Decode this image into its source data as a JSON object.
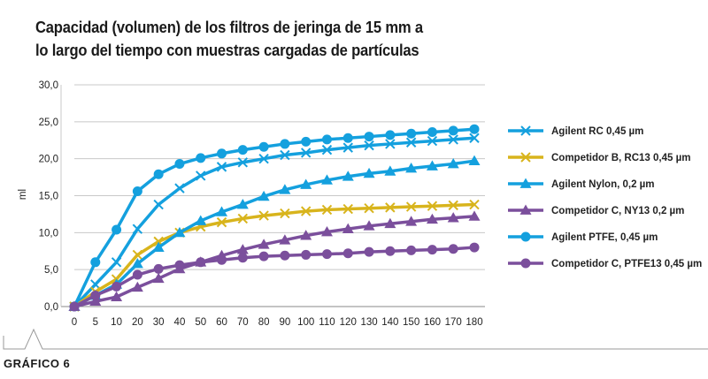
{
  "chart_data": {
    "type": "line",
    "title_lines": [
      "Capacidad (volumen) de los filtros de jeringa de 15 mm a",
      "lo largo del tiempo con muestras cargadas de partículas"
    ],
    "ylabel": "ml",
    "xlabel": "",
    "x": [
      0,
      5,
      10,
      20,
      30,
      40,
      50,
      60,
      70,
      80,
      90,
      100,
      110,
      120,
      130,
      140,
      150,
      160,
      170,
      180
    ],
    "x_tick_labels": [
      "0",
      "5",
      "10",
      "20",
      "30",
      "40",
      "50",
      "60",
      "70",
      "80",
      "90",
      "100",
      "110",
      "120",
      "130",
      "140",
      "150",
      "160",
      "170",
      "180"
    ],
    "ylim": [
      0,
      30
    ],
    "y_ticks": [
      0,
      5,
      10,
      15,
      20,
      25,
      30
    ],
    "y_tick_labels": [
      "0,0",
      "5,0",
      "10,0",
      "15,0",
      "20,0",
      "25,0",
      "30,0"
    ],
    "grid": true,
    "legend_position": "right",
    "series": [
      {
        "name": "Agilent RC 0,45 µm",
        "color": "#14a0de",
        "marker": "x",
        "values": [
          0,
          3,
          6,
          10.5,
          13.8,
          16,
          17.7,
          18.9,
          19.5,
          20,
          20.5,
          20.8,
          21.2,
          21.5,
          21.8,
          22,
          22.2,
          22.4,
          22.6,
          22.8
        ]
      },
      {
        "name": "Competidor B, RC13 0,45 µm",
        "color": "#d8b41c",
        "marker": "x",
        "values": [
          0,
          2,
          3.7,
          7,
          8.8,
          10,
          10.8,
          11.4,
          11.9,
          12.3,
          12.6,
          12.9,
          13.1,
          13.2,
          13.3,
          13.4,
          13.5,
          13.6,
          13.7,
          13.8
        ]
      },
      {
        "name": "Agilent Nylon, 0,2 µm",
        "color": "#14a0de",
        "marker": "triangle",
        "values": [
          0,
          1.5,
          3,
          5.8,
          8,
          10,
          11.6,
          12.8,
          13.8,
          14.9,
          15.8,
          16.5,
          17.1,
          17.6,
          18,
          18.3,
          18.7,
          19,
          19.3,
          19.7
        ]
      },
      {
        "name": "Competidor C, NY13 0,2 µm",
        "color": "#7b4f9c",
        "marker": "triangle",
        "values": [
          0,
          0.7,
          1.3,
          2.6,
          3.8,
          5.1,
          6,
          6.9,
          7.7,
          8.4,
          9,
          9.6,
          10.1,
          10.5,
          10.9,
          11.2,
          11.5,
          11.8,
          12,
          12.2
        ]
      },
      {
        "name": "Agilent PTFE, 0,45 µm",
        "color": "#14a0de",
        "marker": "circle",
        "values": [
          0,
          6,
          10.4,
          15.6,
          17.9,
          19.3,
          20.1,
          20.7,
          21.2,
          21.6,
          22,
          22.3,
          22.6,
          22.8,
          23,
          23.2,
          23.4,
          23.6,
          23.8,
          24
        ]
      },
      {
        "name": "Competidor C, PTFE13 0,45 µm",
        "color": "#7b4f9c",
        "marker": "circle",
        "values": [
          0,
          1.5,
          2.7,
          4.3,
          5.1,
          5.6,
          6,
          6.3,
          6.6,
          6.8,
          6.9,
          7,
          7.1,
          7.2,
          7.4,
          7.5,
          7.6,
          7.7,
          7.8,
          8
        ]
      }
    ]
  },
  "footer": {
    "label": "GRÁFICO 6"
  }
}
